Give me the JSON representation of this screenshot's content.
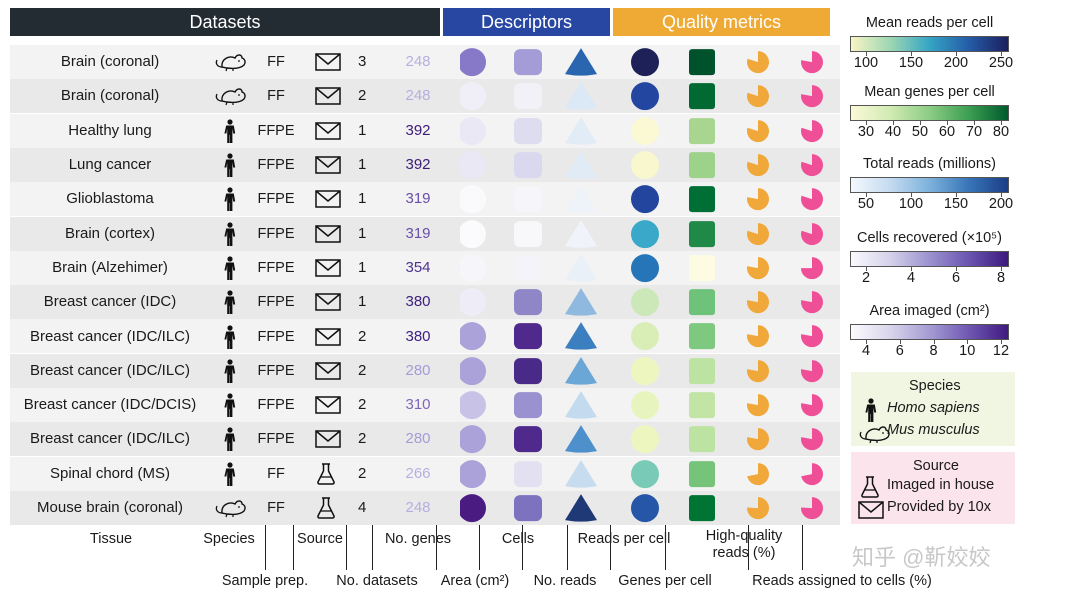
{
  "headers": {
    "datasets": "Datasets",
    "descriptors": "Descriptors",
    "quality": "Quality metrics",
    "colors": {
      "datasets": "#232c33",
      "descriptors": "#2747a3",
      "quality": "#eeaa34"
    }
  },
  "rows": [
    {
      "tissue": "Brain  (coronal)",
      "species": "mouse",
      "prep": "FF",
      "source": "10x",
      "n_datasets": "3",
      "n_genes": "248",
      "genes_color": "#b8aee0",
      "area": "#8878c8",
      "cells": "#a39cd6",
      "reads": "#2a65b0",
      "rpc": "#1e2158",
      "gpc": "#00522c",
      "hq": "#f1a83b",
      "assigned": "#ef4f97",
      "hq_frac": 0.8,
      "asg_frac": 0.78
    },
    {
      "tissue": "Brain  (coronal)",
      "species": "mouse",
      "prep": "FF",
      "source": "10x",
      "n_datasets": "2",
      "n_genes": "248",
      "genes_color": "#b8aee0",
      "area": "#f0eff8",
      "cells": "#f2f1f8",
      "reads": "#dbe8f5",
      "rpc": "#2347a0",
      "gpc": "#006a32",
      "hq": "#f1a83b",
      "assigned": "#ef4f97",
      "hq_frac": 0.8,
      "asg_frac": 0.78
    },
    {
      "tissue": "Healthy lung",
      "species": "human",
      "prep": "FFPE",
      "source": "10x",
      "n_datasets": "1",
      "n_genes": "392",
      "genes_color": "#3d1a78",
      "area": "#ebe8f5",
      "cells": "#dedcef",
      "reads": "#e2ecf7",
      "rpc": "#fbf9d4",
      "gpc": "#a8d690",
      "hq": "#f1a83b",
      "assigned": "#ef4f97",
      "hq_frac": 0.8,
      "asg_frac": 0.8
    },
    {
      "tissue": "Lung cancer",
      "species": "human",
      "prep": "FFPE",
      "source": "10x",
      "n_datasets": "1",
      "n_genes": "392",
      "genes_color": "#3d1a78",
      "area": "#ebe8f5",
      "cells": "#dad8ee",
      "reads": "#e0ebf6",
      "rpc": "#f9f7cd",
      "gpc": "#9cd28a",
      "hq": "#f1a83b",
      "assigned": "#ef4f97",
      "hq_frac": 0.8,
      "asg_frac": 0.8
    },
    {
      "tissue": "Glioblastoma",
      "species": "human",
      "prep": "FFPE",
      "source": "10x",
      "n_datasets": "1",
      "n_genes": "319",
      "genes_color": "#6a4ea8",
      "area": "#fafafc",
      "cells": "#f6f6fa",
      "reads": "#eef3fa",
      "rpc": "#24459e",
      "gpc": "#006f35",
      "hq": "#f1a83b",
      "assigned": "#ef4f97",
      "hq_frac": 0.78,
      "asg_frac": 0.8
    },
    {
      "tissue": "Brain (cortex)",
      "species": "human",
      "prep": "FFPE",
      "source": "10x",
      "n_datasets": "1",
      "n_genes": "319",
      "genes_color": "#6a4ea8",
      "area": "#fbfbfd",
      "cells": "#f8f8fb",
      "reads": "#f0f4fa",
      "rpc": "#3aa8c8",
      "gpc": "#1f8a48",
      "hq": "#f1a83b",
      "assigned": "#ef4f97",
      "hq_frac": 0.8,
      "asg_frac": 0.8
    },
    {
      "tissue": "Brain (Alzehimer)",
      "species": "human",
      "prep": "FFPE",
      "source": "10x",
      "n_datasets": "1",
      "n_genes": "354",
      "genes_color": "#4f3290",
      "area": "#f6f5fa",
      "cells": "#f4f3f9",
      "reads": "#eaf0f8",
      "rpc": "#2675b8",
      "gpc": "#fdfbe2",
      "hq": "#f1a83b",
      "assigned": "#ef4f97",
      "hq_frac": 0.78,
      "asg_frac": 0.75
    },
    {
      "tissue": "Breast cancer (IDC)",
      "species": "human",
      "prep": "FFPE",
      "source": "10x",
      "n_datasets": "1",
      "n_genes": "380",
      "genes_color": "#3d2080",
      "area": "#eeecf6",
      "cells": "#8f86c8",
      "reads": "#8fb9df",
      "rpc": "#cde8b8",
      "gpc": "#6fc27a",
      "hq": "#f1a83b",
      "assigned": "#ef4f97",
      "hq_frac": 0.78,
      "asg_frac": 0.78
    },
    {
      "tissue": "Breast cancer (IDC/ILC)",
      "species": "human",
      "prep": "FFPE",
      "source": "10x",
      "n_datasets": "2",
      "n_genes": "380",
      "genes_color": "#3d2080",
      "area": "#aaa2d8",
      "cells": "#4f2a8c",
      "reads": "#3c7fc0",
      "rpc": "#d9eeb6",
      "gpc": "#7ec880",
      "hq": "#f1a83b",
      "assigned": "#ef4f97",
      "hq_frac": 0.78,
      "asg_frac": 0.78
    },
    {
      "tissue": "Breast cancer (IDC/ILC)",
      "species": "human",
      "prep": "FFPE",
      "source": "10x",
      "n_datasets": "2",
      "n_genes": "280",
      "genes_color": "#a79bd6",
      "area": "#aaa2d8",
      "cells": "#4a2a88",
      "reads": "#6aa6d6",
      "rpc": "#eef6c0",
      "gpc": "#bde3a2",
      "hq": "#f1a83b",
      "assigned": "#ef4f97",
      "hq_frac": 0.78,
      "asg_frac": 0.78
    },
    {
      "tissue": "Breast cancer (IDC/DCIS)",
      "species": "human",
      "prep": "FFPE",
      "source": "10x",
      "n_datasets": "2",
      "n_genes": "310",
      "genes_color": "#7f66b8",
      "area": "#c8c3e6",
      "cells": "#9a92d0",
      "reads": "#c4dbef",
      "rpc": "#e8f4bd",
      "gpc": "#c2e5a6",
      "hq": "#f1a83b",
      "assigned": "#ef4f97",
      "hq_frac": 0.78,
      "asg_frac": 0.78
    },
    {
      "tissue": "Breast cancer (IDC/ILC)",
      "species": "human",
      "prep": "FFPE",
      "source": "10x",
      "n_datasets": "2",
      "n_genes": "280",
      "genes_color": "#a79bd6",
      "area": "#aaa2d8",
      "cells": "#4f2a8c",
      "reads": "#4d90cc",
      "rpc": "#eef6c0",
      "gpc": "#bde3a2",
      "hq": "#f1a83b",
      "assigned": "#ef4f97",
      "hq_frac": 0.78,
      "asg_frac": 0.78
    },
    {
      "tissue": "Spinal chord (MS)",
      "species": "human",
      "prep": "FF",
      "source": "house",
      "n_datasets": "2",
      "n_genes": "266",
      "genes_color": "#b8aee0",
      "area": "#aaa2d8",
      "cells": "#e3e1f1",
      "reads": "#c8dcf0",
      "rpc": "#79cbb8",
      "gpc": "#75c47a",
      "hq": "#f1a83b",
      "assigned": "#ef4f97",
      "hq_frac": 0.72,
      "asg_frac": 0.72
    },
    {
      "tissue": "Mouse brain (coronal)",
      "species": "mouse",
      "prep": "FF",
      "source": "house",
      "n_datasets": "4",
      "n_genes": "248",
      "genes_color": "#b8aee0",
      "area": "#4a1c82",
      "cells": "#7c72c0",
      "reads": "#1f3876",
      "rpc": "#2656a8",
      "gpc": "#007433",
      "hq": "#f1a83b",
      "assigned": "#ef4f97",
      "hq_frac": 0.76,
      "asg_frac": 0.76
    }
  ],
  "legends": [
    {
      "title": "Mean reads per cell",
      "ticks": [
        "100",
        "150",
        "200",
        "250"
      ],
      "stops": [
        "#f9f4c4",
        "#9dd7b3",
        "#35a5c4",
        "#255ca8",
        "#1b1f5c"
      ]
    },
    {
      "title": "Mean genes per cell",
      "ticks": [
        "30",
        "40",
        "50",
        "60",
        "70",
        "80"
      ],
      "stops": [
        "#fbf9d8",
        "#d1ebb3",
        "#8ccc85",
        "#3c9f52",
        "#005a2c"
      ]
    },
    {
      "title": "Total reads (millions)",
      "ticks": [
        "50",
        "100",
        "150",
        "200"
      ],
      "stops": [
        "#f4f8fd",
        "#c4dbf0",
        "#7db2dc",
        "#3875b8",
        "#1b3d86"
      ]
    },
    {
      "title": "Cells recovered (×10⁵)",
      "ticks": [
        "2",
        "4",
        "6",
        "8"
      ],
      "stops": [
        "#fafafd",
        "#d4d1ea",
        "#9b92cf",
        "#6a55b0",
        "#3c1a7e"
      ]
    },
    {
      "title": "Area imaged (cm²)",
      "ticks": [
        "4",
        "6",
        "8",
        "10",
        "12"
      ],
      "stops": [
        "#fbfbfd",
        "#d8d5ec",
        "#a59cd4",
        "#6f58b2",
        "#3f1a80"
      ]
    }
  ],
  "species_box": {
    "title": "Species",
    "items": [
      "Homo sapiens",
      "Mus musculus"
    ]
  },
  "source_box": {
    "title": "Source",
    "items": [
      "Imaged in house",
      "Provided  by 10x"
    ]
  },
  "column_labels": {
    "top": [
      "Tissue",
      "Species",
      "Source",
      "No. genes",
      "Cells",
      "Reads per cell",
      "High-quality\nreads (%)"
    ],
    "bottom": [
      "Sample prep.",
      "No. datasets",
      "Area (cm²)",
      "No. reads",
      "Genes per cell",
      "Reads assigned to cells (%)"
    ]
  },
  "watermark": "知乎 @靳姣姣"
}
